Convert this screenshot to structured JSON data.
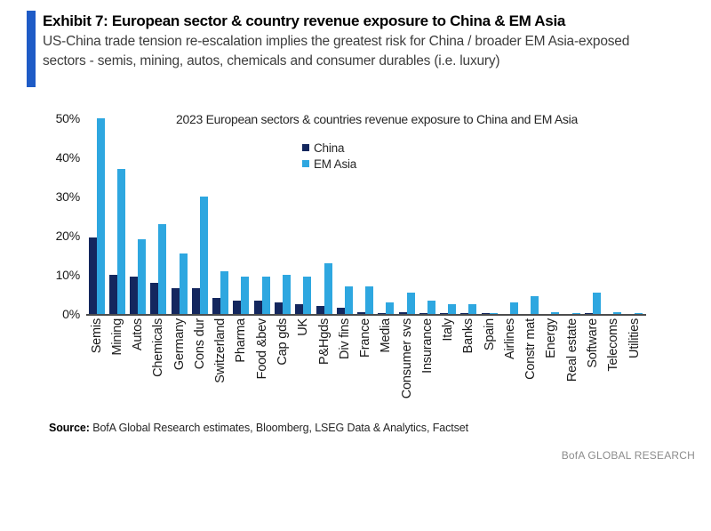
{
  "header": {
    "exhibit_title": "Exhibit 7: European sector & country revenue exposure to China & EM Asia",
    "subtitle_line1": "US-China trade tension re-escalation implies the greatest risk for China / broader EM Asia-exposed",
    "subtitle_line2": "sectors - semis, mining, autos, chemicals and consumer durables (i.e. luxury)"
  },
  "chart_data": {
    "type": "bar",
    "title": "2023 European sectors & countries revenue exposure to China and EM Asia",
    "categories": [
      "Semis",
      "Mining",
      "Autos",
      "Chemicals",
      "Germany",
      "Cons dur",
      "Switzerland",
      "Pharma",
      "Food &bev",
      "Cap gds",
      "UK",
      "P&Hgds",
      "Div fins",
      "France",
      "Media",
      "Consumer svs",
      "Insurance",
      "Italy",
      "Banks",
      "Spain",
      "Airlines",
      "Constr mat",
      "Energy",
      "Real estate",
      "Software",
      "Telecoms",
      "Utilities"
    ],
    "series": [
      {
        "name": "China",
        "color": "#14275e",
        "values": [
          19.5,
          10,
          9.5,
          8,
          6.5,
          6.5,
          4,
          3.5,
          3.5,
          3,
          2.5,
          2,
          1.5,
          0.5,
          0.3,
          0.5,
          0.2,
          0.2,
          0.2,
          0.2,
          0.1,
          0.1,
          0.1,
          0.1,
          0.2,
          0.1,
          0.1
        ]
      },
      {
        "name": "EM Asia",
        "color": "#2ea7e0",
        "values": [
          50,
          37,
          19,
          23,
          15.5,
          30,
          11,
          9.5,
          9.5,
          10,
          9.5,
          13,
          7,
          7,
          3,
          5.5,
          3.5,
          2.5,
          2.5,
          0.3,
          3,
          4.5,
          0.5,
          0.2,
          5.5,
          0.5,
          0.3
        ]
      }
    ],
    "ylim": [
      0,
      50
    ],
    "y_ticks": [
      0,
      10,
      20,
      30,
      40,
      50
    ],
    "y_tick_suffix": "%",
    "xlabel": "",
    "ylabel": "",
    "grid": false,
    "legend_position": "top-center"
  },
  "footer": {
    "source_label": "Source:",
    "source_text": " BofA Global Research estimates, Bloomberg, LSEG Data & Analytics, Factset",
    "brand": "BofA GLOBAL RESEARCH"
  },
  "colors": {
    "accent_bar": "#1e5bc6",
    "axis_line": "#4d4d4d",
    "china_bar": "#14275e",
    "em_asia_bar": "#2ea7e0"
  }
}
